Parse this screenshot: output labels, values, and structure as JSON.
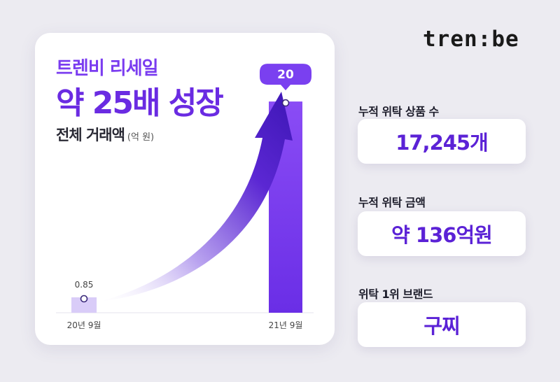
{
  "brand": {
    "logo_text": "tren:be"
  },
  "headline": {
    "subtitle": "트렌비 리세일",
    "title": "약 25배 성장",
    "description": "전체 거래액",
    "unit": "(억 원)"
  },
  "chart_data": {
    "type": "bar",
    "categories": [
      "20년 9월",
      "21년 9월"
    ],
    "values": [
      0.85,
      20
    ],
    "data_labels": [
      "0.85",
      "20"
    ],
    "ylim": [
      0,
      21
    ],
    "grid": false,
    "colors": {
      "bar_low": "#d9ccf8",
      "bar_high": "#7b3cf0",
      "arrow": "#4a1cc4",
      "bubble": "#7a40f0"
    }
  },
  "stats": [
    {
      "label": "누적 위탁 상품 수",
      "value": "17,245개"
    },
    {
      "label": "누적 위탁 금액",
      "value": "약 136억원"
    },
    {
      "label": "위탁 1위 브랜드",
      "value": "구찌"
    }
  ]
}
